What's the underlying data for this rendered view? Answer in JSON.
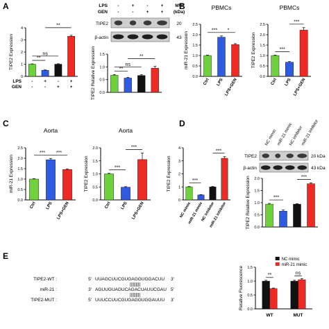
{
  "colors": {
    "green": "#6fd13d",
    "blue": "#2f5be0",
    "black": "#111111",
    "red": "#ee2a24",
    "white": "#ffffff"
  },
  "panel_labels": [
    "A",
    "B",
    "C",
    "D",
    "E"
  ],
  "blot_A": {
    "header_rows": [
      {
        "label": "LPS",
        "marks": [
          "-",
          "+",
          "-",
          "+"
        ]
      },
      {
        "label": "GEN",
        "marks": [
          "-",
          "-",
          "+",
          "+"
        ]
      }
    ],
    "mw_label": "MW",
    "kda_label": "(kDa)",
    "bands": [
      {
        "label": "TIPE2",
        "mw": "20"
      },
      {
        "label": "β-actin",
        "mw": "43"
      }
    ]
  },
  "blot_D": {
    "lanes": [
      "NC mimic",
      "miR-21 mimic",
      "NC inhibitor",
      "miR-21 inhibitor"
    ],
    "bands": [
      {
        "label": "TIPE2",
        "mw": "20 kDa"
      },
      {
        "label": "β-actin",
        "mw": "43 kDa"
      }
    ]
  },
  "titles": {
    "pbmc_1": "PBMCs",
    "pbmc_2": "PBMCs",
    "aorta_1": "Aorta",
    "aorta_2": "Aorta"
  },
  "sequences": {
    "rows": [
      {
        "name": "TIPE2-WT :",
        "p5": "5'",
        "seq": "UUAGCUUCGUGAGGUGGACUU",
        "p3": "3'"
      },
      {
        "name": "",
        "p5": "",
        "seq": "|||||||||",
        "p3": ""
      },
      {
        "name": "miR-21 :",
        "p5": "3'",
        "seq": "AGUUGUAGUCAGACUAUUCGAU",
        "p3": "5'"
      },
      {
        "name": "",
        "p5": "",
        "seq": "|||||||||",
        "p3": ""
      },
      {
        "name": "TIPE2-MUT :",
        "p5": "5'",
        "seq": "UUUCCUUCGUGAGGUGGAUUU",
        "p3": "3'"
      }
    ]
  },
  "chart_data": [
    {
      "id": "A_qpcr",
      "type": "bar",
      "ylabel": "TIPE2 Expression",
      "ylim": [
        0,
        4
      ],
      "yticks": [
        0,
        1,
        2,
        3,
        4
      ],
      "xlabel_rows": [
        {
          "label": "LPS",
          "marks": [
            "-",
            "+",
            "-",
            "+"
          ]
        },
        {
          "label": "GEN",
          "marks": [
            "-",
            "-",
            "+",
            "+"
          ]
        }
      ],
      "categories": [
        "",
        "",
        "",
        ""
      ],
      "values": [
        1.0,
        0.5,
        1.0,
        3.3
      ],
      "errors": [
        0.03,
        0.03,
        0.04,
        0.08
      ],
      "colors": [
        "green",
        "blue",
        "black",
        "red"
      ],
      "sig": [
        {
          "from": 0,
          "to": 1,
          "label": "**"
        },
        {
          "from": 0,
          "to": 2,
          "label": "ns"
        },
        {
          "from": 1,
          "to": 3,
          "label": "**"
        }
      ]
    },
    {
      "id": "A_wb",
      "type": "bar",
      "ylabel": "TIPE2 Relative Expression",
      "ylim": [
        0,
        1.5
      ],
      "yticks": [
        0.0,
        0.5,
        1.0,
        1.5
      ],
      "categories": [
        "",
        "",
        "",
        ""
      ],
      "values": [
        0.67,
        0.56,
        0.66,
        0.95
      ],
      "errors": [
        0.03,
        0.03,
        0.03,
        0.07
      ],
      "colors": [
        "green",
        "blue",
        "black",
        "red"
      ],
      "sig": [
        {
          "from": 0,
          "to": 1,
          "label": "**"
        },
        {
          "from": 0,
          "to": 2,
          "label": "ns"
        },
        {
          "from": 1,
          "to": 3,
          "label": "**"
        }
      ]
    },
    {
      "id": "B_mir21",
      "type": "bar",
      "title": "PBMCs",
      "ylabel": "miR-21 Expression",
      "ylim": [
        0,
        2.5
      ],
      "yticks": [
        0.0,
        0.5,
        1.0,
        1.5,
        2.0,
        2.5
      ],
      "categories": [
        "Ctrl",
        "LPS",
        "LPS+GEN"
      ],
      "values": [
        1.0,
        1.88,
        1.53
      ],
      "errors": [
        0.02,
        0.06,
        0.04
      ],
      "colors": [
        "green",
        "blue",
        "red"
      ],
      "sig": [
        {
          "from": 0,
          "to": 1,
          "label": "***"
        },
        {
          "from": 1,
          "to": 2,
          "label": "*"
        }
      ]
    },
    {
      "id": "B_tipe2",
      "type": "bar",
      "title": "PBMCs",
      "ylabel": "TIPE2 Expression",
      "ylim": [
        0,
        2.5
      ],
      "yticks": [
        0.0,
        0.5,
        1.0,
        1.5,
        2.0,
        2.5
      ],
      "categories": [
        "Ctrl",
        "LPS",
        "LPS+GEN"
      ],
      "values": [
        1.0,
        0.68,
        2.22
      ],
      "errors": [
        0.02,
        0.03,
        0.12
      ],
      "colors": [
        "green",
        "blue",
        "red"
      ],
      "sig": [
        {
          "from": 0,
          "to": 1,
          "label": "***"
        },
        {
          "from": 1,
          "to": 2,
          "label": "***"
        }
      ]
    },
    {
      "id": "C_mir21",
      "type": "bar",
      "title": "Aorta",
      "ylabel": "miR-21 Expression",
      "ylim": [
        0,
        2.5
      ],
      "yticks": [
        0.0,
        0.5,
        1.0,
        1.5,
        2.0,
        2.5
      ],
      "categories": [
        "Ctrl",
        "LPS",
        "LPS+GEN"
      ],
      "values": [
        1.0,
        1.93,
        1.46
      ],
      "errors": [
        0.02,
        0.06,
        0.03
      ],
      "colors": [
        "green",
        "blue",
        "red"
      ],
      "sig": [
        {
          "from": 0,
          "to": 1,
          "label": "***"
        },
        {
          "from": 1,
          "to": 2,
          "label": "***"
        }
      ]
    },
    {
      "id": "C_tipe2",
      "type": "bar",
      "title": "Aorta",
      "ylabel": "TIPE2 Expression",
      "ylim": [
        0,
        2.0
      ],
      "yticks": [
        0.0,
        0.5,
        1.0,
        1.5,
        2.0
      ],
      "categories": [
        "Ctrl",
        "LPS",
        "LPS+GEN"
      ],
      "values": [
        1.0,
        0.49,
        1.55
      ],
      "errors": [
        0.02,
        0.02,
        0.25
      ],
      "colors": [
        "green",
        "blue",
        "red"
      ],
      "sig": [
        {
          "from": 0,
          "to": 1,
          "label": "***"
        },
        {
          "from": 1,
          "to": 2,
          "label": "***"
        }
      ]
    },
    {
      "id": "D_qpcr",
      "type": "bar",
      "ylabel": "TIPE2 Expression",
      "ylim": [
        0,
        4
      ],
      "yticks": [
        0,
        1,
        2,
        3,
        4
      ],
      "categories": [
        "NC mimic",
        "miR-21 mimic",
        "NC inhibitor",
        "miR-21 inhibitor"
      ],
      "values": [
        1.0,
        0.38,
        1.0,
        3.2
      ],
      "errors": [
        0.03,
        0.03,
        0.03,
        0.12
      ],
      "colors": [
        "green",
        "blue",
        "black",
        "red"
      ],
      "sig": [
        {
          "from": 0,
          "to": 1,
          "label": "***"
        },
        {
          "from": 2,
          "to": 3,
          "label": "***"
        }
      ]
    },
    {
      "id": "D_wb",
      "type": "bar",
      "ylabel": "TIPE2 Relative Expression",
      "ylim": [
        0,
        2.0
      ],
      "yticks": [
        0.0,
        0.5,
        1.0,
        1.5,
        2.0
      ],
      "categories": [
        "",
        "",
        "",
        ""
      ],
      "values": [
        0.94,
        0.65,
        0.94,
        1.78
      ],
      "errors": [
        0.03,
        0.05,
        0.02,
        0.03
      ],
      "colors": [
        "green",
        "blue",
        "black",
        "red"
      ],
      "sig": [
        {
          "from": 0,
          "to": 1,
          "label": "***"
        },
        {
          "from": 2,
          "to": 3,
          "label": "***"
        }
      ]
    },
    {
      "id": "E_luc",
      "type": "bar",
      "ylabel": "Relative Fluorescence",
      "ylim": [
        0,
        1.5
      ],
      "yticks": [
        0.0,
        0.5,
        1.0,
        1.5
      ],
      "categories": [
        "WT",
        "MUT"
      ],
      "series": [
        {
          "name": "NC mimic",
          "color": "black",
          "values": [
            1.0,
            1.0
          ],
          "errors": [
            0.03,
            0.03
          ]
        },
        {
          "name": "miR-21 mimic",
          "color": "red",
          "values": [
            0.73,
            1.05
          ],
          "errors": [
            0.02,
            0.04
          ]
        }
      ],
      "legend": "top-right",
      "sig": [
        {
          "group": 0,
          "label": "**"
        },
        {
          "group": 1,
          "label": "ns"
        }
      ]
    }
  ]
}
